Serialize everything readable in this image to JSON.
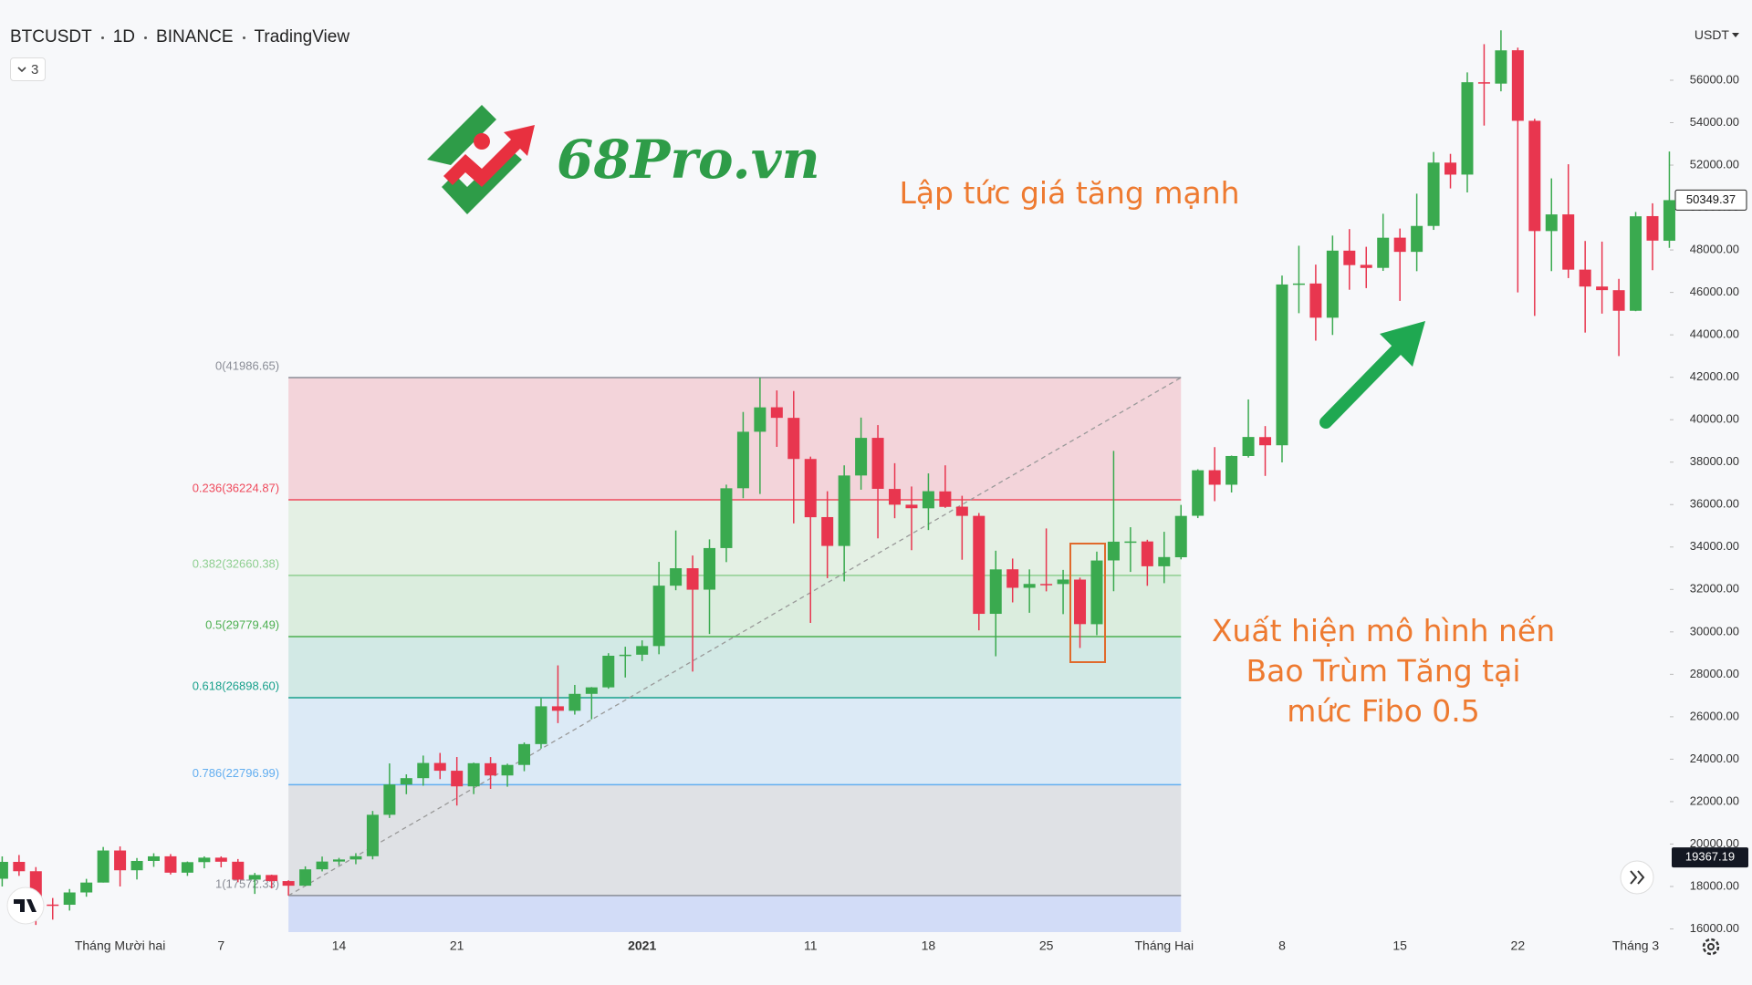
{
  "header": {
    "symbol": "BTCUSDT",
    "interval": "1D",
    "exchange": "BINANCE",
    "source": "TradingView",
    "indicator_count": 3,
    "currency": "USDT"
  },
  "logo": {
    "text": "68Pro.vn"
  },
  "annotations": {
    "rally": "Lập tức giá tăng mạnh",
    "pattern_note": [
      "Xuất hiện mô hình nến",
      "Bao Trùm Tăng tại",
      "mức Fibo 0.5"
    ]
  },
  "chart_data": {
    "type": "candlestick",
    "up_color": "#3aaa4f",
    "down_color": "#e8364f",
    "categories": [
      null,
      null,
      null,
      null,
      null,
      null,
      null,
      "Tháng Mười hai",
      null,
      null,
      null,
      null,
      null,
      "7",
      null,
      null,
      null,
      null,
      null,
      null,
      "14",
      null,
      null,
      null,
      null,
      null,
      null,
      "21",
      null,
      null,
      null,
      null,
      null,
      null,
      null,
      null,
      null,
      null,
      "2021",
      null,
      null,
      null,
      null,
      null,
      null,
      null,
      null,
      null,
      "11",
      null,
      null,
      null,
      null,
      null,
      null,
      "18",
      null,
      null,
      null,
      null,
      null,
      null,
      "25",
      null,
      null,
      null,
      null,
      null,
      null,
      "Tháng Hai",
      null,
      null,
      null,
      null,
      null,
      null,
      "8",
      null,
      null,
      null,
      null,
      null,
      null,
      "15",
      null,
      null,
      null,
      null,
      null,
      null,
      "22",
      null,
      null,
      null,
      null,
      null,
      null,
      "Tháng 3",
      null,
      null
    ],
    "open": [
      18365,
      19160,
      18719,
      17149,
      17139,
      17719,
      18185,
      19696,
      18764,
      19204,
      19422,
      18651,
      19148,
      19359,
      19167,
      18324,
      18541,
      18254,
      18036,
      18809,
      19175,
      19274,
      19427,
      21380,
      22807,
      23107,
      23821,
      23455,
      22719,
      23810,
      23233,
      23729,
      24712,
      26493,
      26281,
      27079,
      27385,
      28876,
      28924,
      29332,
      32176,
      33000,
      31989,
      33950,
      36770,
      39433,
      40586,
      40088,
      38150,
      35410,
      34049,
      37371,
      39145,
      36737,
      35994,
      35824,
      36622,
      35901,
      35468,
      30851,
      32950,
      32078,
      32259,
      32254,
      32464,
      30362,
      33368,
      34246,
      34262,
      33092,
      33517,
      35472,
      37620,
      36936,
      38289,
      39181,
      38795,
      46375,
      46420,
      44807,
      47968,
      47298,
      47157,
      48580,
      47911,
      49133,
      52117,
      51553,
      55906,
      55841,
      57413,
      54088,
      48891,
      49677,
      47074,
      46277,
      46104,
      45134,
      49595,
      48436
    ],
    "high": [
      19418,
      19484,
      18915,
      17457,
      17880,
      18360,
      19863,
      19888,
      19342,
      19566,
      19527,
      19177,
      19420,
      19420,
      19294,
      18639,
      18557,
      18292,
      18948,
      19411,
      19349,
      19570,
      21560,
      23800,
      23285,
      24171,
      24295,
      24102,
      23838,
      24100,
      23789,
      24789,
      26867,
      28422,
      27500,
      27400,
      28996,
      29300,
      29600,
      33300,
      34778,
      33600,
      34360,
      36939,
      40365,
      41987,
      41380,
      41350,
      38264,
      36628,
      37850,
      40100,
      39747,
      37950,
      36852,
      37469,
      37850,
      36415,
      35600,
      33826,
      33456,
      32945,
      34875,
      32921,
      32557,
      33783,
      38531,
      34933,
      34342,
      34717,
      35984,
      37662,
      38708,
      38310,
      40955,
      39700,
      46794,
      48200,
      47310,
      48678,
      48985,
      48150,
      49707,
      49010,
      50653,
      52618,
      52530,
      56368,
      57700,
      58352,
      57533,
      54183,
      51374,
      52041,
      48424,
      48394,
      46638,
      49790,
      50200,
      52640
    ],
    "low": [
      18000,
      18500,
      16188,
      16438,
      16865,
      17517,
      18185,
      18001,
      18330,
      18925,
      18565,
      18500,
      18857,
      18902,
      18200,
      17650,
      17911,
      17572,
      18020,
      18711,
      19000,
      19050,
      19278,
      21230,
      22350,
      22750,
      23060,
      21815,
      22353,
      22600,
      22703,
      23433,
      24500,
      25700,
      26101,
      25880,
      27320,
      27850,
      28624,
      28946,
      31962,
      28130,
      29900,
      33288,
      36300,
      36500,
      38720,
      35111,
      30420,
      32531,
      32380,
      36701,
      34408,
      35357,
      33850,
      34800,
      35844,
      33400,
      30071,
      28850,
      31390,
      30900,
      31910,
      30837,
      29241,
      29842,
      31915,
      32825,
      32171,
      32296,
      33418,
      35362,
      36161,
      36570,
      38215,
      37351,
      37988,
      45020,
      43727,
      43994,
      46125,
      46202,
      47014,
      45600,
      47000,
      48947,
      50901,
      50710,
      53863,
      55477,
      46000,
      44892,
      47003,
      46674,
      44106,
      45000,
      43000,
      45115,
      47047,
      48100
    ],
    "close": [
      19160,
      18719,
      17149,
      17139,
      17719,
      18185,
      19696,
      18764,
      19204,
      19421,
      18651,
      19147,
      19359,
      19167,
      18324,
      18541,
      18254,
      18036,
      18808,
      19175,
      19273,
      19427,
      21380,
      22808,
      23107,
      23821,
      23455,
      22719,
      23810,
      23232,
      23729,
      24712,
      26493,
      26281,
      27079,
      27385,
      28875,
      28924,
      29332,
      32179,
      33000,
      31988,
      33950,
      36769,
      39432,
      40582,
      40088,
      38150,
      35404,
      34051,
      37371,
      39144,
      36742,
      35994,
      35828,
      36631,
      35891,
      35468,
      30850,
      32945,
      32078,
      32259,
      32254,
      32467,
      30366,
      33364,
      34252,
      34262,
      33092,
      33526,
      35466,
      37618,
      36936,
      38290,
      39186,
      38795,
      46374,
      46420,
      44807,
      47969,
      47287,
      47153,
      48577,
      47911,
      49133,
      52119,
      51552,
      55906,
      55841,
      57408,
      54088,
      48891,
      49676,
      47073,
      46276,
      46106,
      45135,
      49587,
      48441,
      50349.37
    ],
    "crosshair_price": 19367.19,
    "ylim": [
      15850,
      58750
    ],
    "yticks": [
      {
        "value": 16000,
        "label": "16000.00"
      },
      {
        "value": 18000,
        "label": "18000.00"
      },
      {
        "value": 20000,
        "label": "20000.00"
      },
      {
        "value": 22000,
        "label": "22000.00"
      },
      {
        "value": 24000,
        "label": "24000.00"
      },
      {
        "value": 26000,
        "label": "26000.00"
      },
      {
        "value": 28000,
        "label": "28000.00"
      },
      {
        "value": 30000,
        "label": "30000.00"
      },
      {
        "value": 32000,
        "label": "32000.00"
      },
      {
        "value": 34000,
        "label": "34000.00"
      },
      {
        "value": 36000,
        "label": "36000.00"
      },
      {
        "value": 38000,
        "label": "38000.00"
      },
      {
        "value": 40000,
        "label": "40000.00"
      },
      {
        "value": 42000,
        "label": "42000.00"
      },
      {
        "value": 44000,
        "label": "44000.00"
      },
      {
        "value": 46000,
        "label": "46000.00"
      },
      {
        "value": 48000,
        "label": "48000.00"
      },
      {
        "value": 50000,
        "label": "50000.00"
      },
      {
        "value": 52000,
        "label": "52000.00"
      },
      {
        "value": 54000,
        "label": "54000.00"
      },
      {
        "value": 56000,
        "label": "56000.00"
      }
    ],
    "fib_levels": [
      {
        "label": "0(41986.65)",
        "price": 41986.65,
        "color": "#8a8d96",
        "fill": "#f2ced3"
      },
      {
        "label": "0.236(36224.87)",
        "price": 36224.87,
        "color": "#ef4a5c",
        "fill": "#e0eedf"
      },
      {
        "label": "0.382(32660.38)",
        "price": 32660.38,
        "color": "#8fcf91",
        "fill": "#d6ebd8"
      },
      {
        "label": "0.5(29779.49)",
        "price": 29779.49,
        "color": "#4caf50",
        "fill": "#cbe6e0"
      },
      {
        "label": "0.618(26898.60)",
        "price": 26898.6,
        "color": "#17a08b",
        "fill": "#d7e7f5"
      },
      {
        "label": "0.786(22796.99)",
        "price": 22796.99,
        "color": "#62aef0",
        "fill": "#dbdde0"
      },
      {
        "label": "1(17572.33)",
        "price": 17572.33,
        "color": "#8a8d96",
        "fill": "#cbd7f6"
      }
    ]
  }
}
